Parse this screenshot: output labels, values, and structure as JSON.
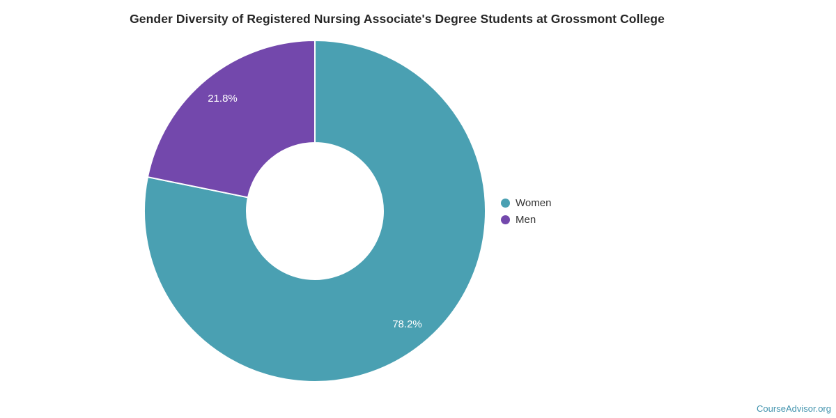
{
  "chart_data": {
    "type": "pie",
    "title": "Gender Diversity of Registered Nursing Associate's Degree Students at Grossmont College",
    "categories": [
      "Women",
      "Men"
    ],
    "values": [
      78.2,
      21.8
    ],
    "slice_labels": [
      "78.2%",
      "21.8%"
    ],
    "colors": [
      "#4aa0b2",
      "#7348ac"
    ],
    "donut": true,
    "start_angle_deg": 0,
    "direction": "clockwise",
    "inner_radius_ratio": 0.4,
    "label_radius_ratio": 0.855,
    "slice_label_color": "#ffffff",
    "slice_separator_color": "#ffffff",
    "legend_position": "right",
    "title_color": "#262626",
    "legend_text_color": "#333333"
  },
  "footer": {
    "brand": "CourseAdvisor.org",
    "brand_color": "#3f92ad"
  }
}
